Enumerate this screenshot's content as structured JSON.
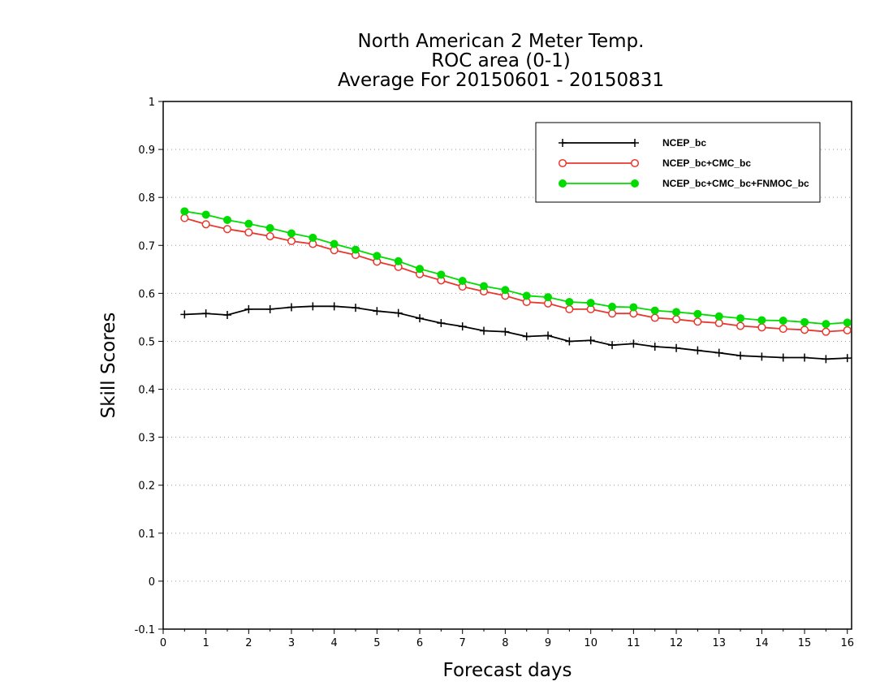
{
  "chart_data": {
    "type": "line",
    "title": [
      "North American 2 Meter Temp.",
      "ROC area (0-1)",
      "Average For 20150601 - 20150831"
    ],
    "xlabel": "Forecast days",
    "ylabel": "Skill Scores",
    "xlim": [
      0,
      16.1
    ],
    "ylim": [
      -0.1,
      1.0
    ],
    "xticks": [
      0,
      1,
      2,
      3,
      4,
      5,
      6,
      7,
      8,
      9,
      10,
      11,
      12,
      13,
      14,
      15,
      16
    ],
    "yticks": [
      -0.1,
      0,
      0.1,
      0.2,
      0.3,
      0.4,
      0.5,
      0.6,
      0.7,
      0.8,
      0.9,
      1
    ],
    "ytick_labels": [
      "-0.1",
      "0",
      "0.1",
      "0.2",
      "0.3",
      "0.4",
      "0.5",
      "0.6",
      "0.7",
      "0.8",
      "0.9",
      "1"
    ],
    "grid": "horizontal dotted",
    "legend_position": "top-right",
    "x": [
      0.5,
      1,
      1.5,
      2,
      2.5,
      3,
      3.5,
      4,
      4.5,
      5,
      5.5,
      6,
      6.5,
      7,
      7.5,
      8,
      8.5,
      9,
      9.5,
      10,
      10.5,
      11,
      11.5,
      12,
      12.5,
      13,
      13.5,
      14,
      14.5,
      15,
      15.5,
      16
    ],
    "series": [
      {
        "name": "NCEP_bc",
        "color": "#000000",
        "marker": "plus",
        "values": [
          0.556,
          0.558,
          0.555,
          0.567,
          0.567,
          0.571,
          0.573,
          0.573,
          0.57,
          0.563,
          0.559,
          0.548,
          0.538,
          0.531,
          0.522,
          0.52,
          0.51,
          0.512,
          0.5,
          0.502,
          0.492,
          0.495,
          0.489,
          0.486,
          0.481,
          0.476,
          0.47,
          0.468,
          0.466,
          0.466,
          0.463,
          0.465
        ]
      },
      {
        "name": "NCEP_bc+CMC_bc",
        "color": "#e8382e",
        "marker": "open-circle",
        "values": [
          0.757,
          0.744,
          0.734,
          0.727,
          0.719,
          0.709,
          0.703,
          0.69,
          0.68,
          0.666,
          0.655,
          0.64,
          0.627,
          0.614,
          0.604,
          0.595,
          0.582,
          0.579,
          0.567,
          0.567,
          0.558,
          0.558,
          0.549,
          0.546,
          0.541,
          0.538,
          0.532,
          0.529,
          0.526,
          0.524,
          0.52,
          0.523
        ]
      },
      {
        "name": "NCEP_bc+CMC_bc+FNMOC_bc",
        "color": "#00dc00",
        "marker": "filled-circle",
        "values": [
          0.771,
          0.764,
          0.753,
          0.745,
          0.736,
          0.725,
          0.716,
          0.703,
          0.691,
          0.678,
          0.667,
          0.651,
          0.639,
          0.626,
          0.615,
          0.607,
          0.595,
          0.592,
          0.582,
          0.58,
          0.572,
          0.571,
          0.564,
          0.561,
          0.557,
          0.552,
          0.548,
          0.544,
          0.543,
          0.54,
          0.536,
          0.539
        ]
      }
    ]
  }
}
